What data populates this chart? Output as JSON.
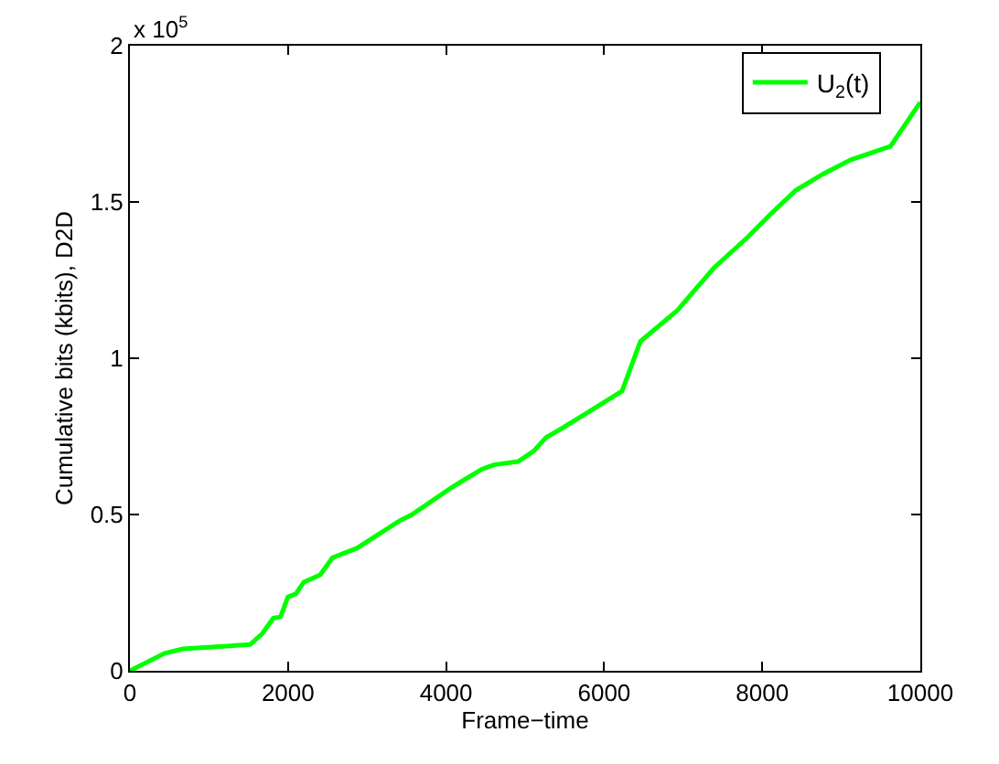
{
  "chart_data": {
    "type": "line",
    "xlabel": "Frame−time",
    "ylabel": "Cumulative bits (kbits), D2D",
    "annotations": [
      "x 10$^{5}$"
    ],
    "x": [
      0,
      440,
      671,
      1520,
      1675,
      1814,
      1906,
      1999,
      2099,
      2200,
      2408,
      2562,
      2871,
      3411,
      3565,
      4067,
      4452,
      4607,
      4915,
      5108,
      5262,
      5494,
      5880,
      6227,
      6459,
      6922,
      7385,
      7810,
      8118,
      8427,
      8774,
      9121,
      9622,
      10000
    ],
    "series": [
      {
        "name": "U$_{2}$(t)",
        "color": "#00ff00",
        "values": [
          0,
          0.056,
          0.07,
          0.084,
          0.119,
          0.168,
          0.173,
          0.236,
          0.246,
          0.284,
          0.307,
          0.362,
          0.392,
          0.48,
          0.499,
          0.586,
          0.645,
          0.659,
          0.67,
          0.703,
          0.746,
          0.78,
          0.84,
          0.895,
          1.054,
          1.152,
          1.288,
          1.386,
          1.464,
          1.538,
          1.59,
          1.635,
          1.678,
          1.819
        ]
      }
    ],
    "xlim": [
      0,
      10000
    ],
    "xticks": [
      0,
      2000,
      4000,
      6000,
      8000,
      10000
    ],
    "ylim": [
      0,
      2
    ],
    "yticks": [
      0,
      0.5,
      1,
      1.5,
      2
    ],
    "legend": "top right",
    "marker": "none",
    "line_style": "solid"
  }
}
